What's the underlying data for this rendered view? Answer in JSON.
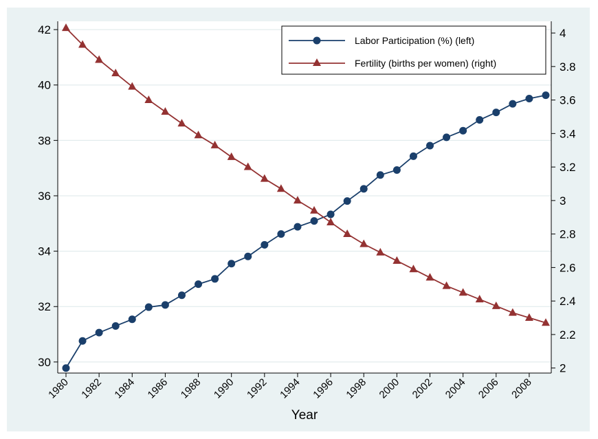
{
  "chart_data": {
    "type": "line",
    "title": "",
    "xlabel": "Year",
    "ylabel_left": "",
    "ylabel_right": "",
    "x": [
      1980,
      1981,
      1982,
      1983,
      1984,
      1985,
      1986,
      1987,
      1988,
      1989,
      1990,
      1991,
      1992,
      1993,
      1994,
      1995,
      1996,
      1997,
      1998,
      1999,
      2000,
      2001,
      2002,
      2003,
      2004,
      2005,
      2006,
      2007,
      2008,
      2009
    ],
    "x_ticks": [
      "1980",
      "1982",
      "1984",
      "1986",
      "1988",
      "1990",
      "1992",
      "1994",
      "1996",
      "1998",
      "2000",
      "2002",
      "2004",
      "2006",
      "2008"
    ],
    "y_left_ticks": [
      "30",
      "32",
      "34",
      "36",
      "38",
      "40",
      "42"
    ],
    "y_right_ticks": [
      "2",
      "2.2",
      "2.4",
      "2.6",
      "2.8",
      "3",
      "3.2",
      "3.4",
      "3.6",
      "3.8",
      "4"
    ],
    "y_left_lim": [
      29.6,
      42.3
    ],
    "y_right_lim": [
      1.97,
      4.07
    ],
    "x_lim": [
      1980,
      2009
    ],
    "grid": "horizontal, left axis",
    "legend_position": "top-right",
    "series": [
      {
        "name": "Labor Participation (%) (left)",
        "axis": "left",
        "color": "#1a3f6b",
        "marker": "circle",
        "values": [
          29.78,
          30.76,
          31.06,
          31.3,
          31.54,
          31.98,
          32.06,
          32.41,
          32.81,
          33.0,
          33.55,
          33.81,
          34.23,
          34.62,
          34.88,
          35.09,
          35.33,
          35.81,
          36.25,
          36.75,
          36.93,
          37.43,
          37.81,
          38.11,
          38.35,
          38.74,
          39.01,
          39.32,
          39.51,
          39.63
        ]
      },
      {
        "name": "Fertility (births per women) (right)",
        "axis": "right",
        "color": "#943232",
        "marker": "triangle",
        "values": [
          4.03,
          3.93,
          3.84,
          3.76,
          3.68,
          3.6,
          3.53,
          3.46,
          3.39,
          3.33,
          3.26,
          3.2,
          3.13,
          3.07,
          3.0,
          2.94,
          2.87,
          2.8,
          2.74,
          2.69,
          2.64,
          2.59,
          2.54,
          2.49,
          2.45,
          2.41,
          2.37,
          2.33,
          2.3,
          2.27
        ]
      }
    ]
  }
}
